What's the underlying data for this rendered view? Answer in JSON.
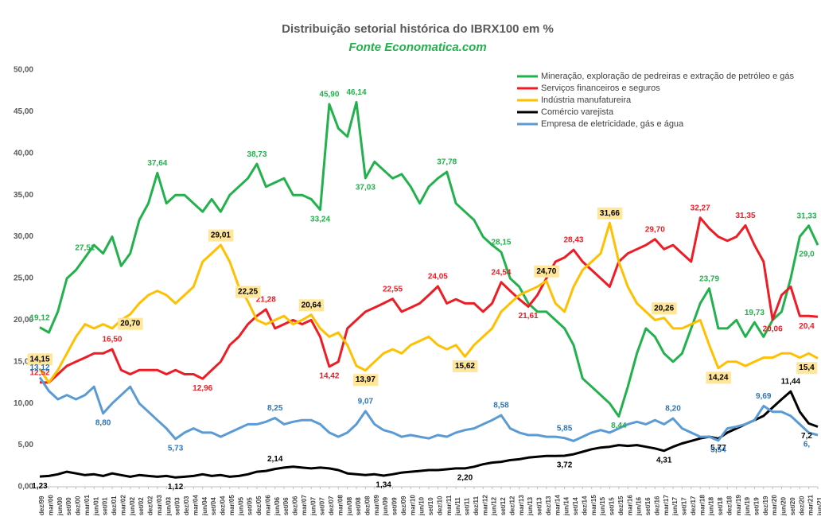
{
  "chart_data": {
    "type": "line",
    "title": "Distribuição setorial histórica do IBRX100 em %",
    "subtitle": "Fonte Economatica.com",
    "categories": [
      "dez/99",
      "mar/00",
      "jun/00",
      "set/00",
      "dez/00",
      "mar/01",
      "jun/01",
      "set/01",
      "dez/01",
      "mar/02",
      "jun/02",
      "set/02",
      "dez/02",
      "mar/03",
      "jun/03",
      "set/03",
      "dez/03",
      "mar/04",
      "jun/04",
      "set/04",
      "dez/04",
      "mar/05",
      "jun/05",
      "set/05",
      "dez/05",
      "mar/06",
      "jun/06",
      "set/06",
      "dez/06",
      "mar/07",
      "jun/07",
      "set/07",
      "dez/07",
      "mar/08",
      "jun/08",
      "set/08",
      "dez/08",
      "mar/09",
      "jun/09",
      "set/09",
      "dez/09",
      "mar/10",
      "jun/10",
      "set/10",
      "dez/10",
      "mar/11",
      "jun/11",
      "set/11",
      "dez/11",
      "mar/12",
      "jun/12",
      "set/12",
      "dez/12",
      "mar/13",
      "jun/13",
      "set/13",
      "dez/13",
      "mar/14",
      "jun/14",
      "set/14",
      "dez/14",
      "mar/15",
      "jun/15",
      "set/15",
      "dez/15",
      "mar/16",
      "jun/16",
      "set/16",
      "dez/16",
      "mar/17",
      "jun/17",
      "set/17",
      "dez/17",
      "mar/18",
      "jun/18",
      "set/18",
      "dez/18",
      "mar/19",
      "jun/19",
      "set/19",
      "dez/19",
      "mar/20",
      "jun/20",
      "set/20",
      "dez/20",
      "mar/21",
      "jun/21"
    ],
    "ylim": [
      0,
      50
    ],
    "yticks": [
      {
        "value": 0,
        "label": "0,00"
      },
      {
        "value": 5,
        "label": "5,00"
      },
      {
        "value": 10,
        "label": "10,00"
      },
      {
        "value": 15,
        "label": "15,00"
      },
      {
        "value": 20,
        "label": "20,00"
      },
      {
        "value": 25,
        "label": "25,00"
      },
      {
        "value": 30,
        "label": "30,00"
      },
      {
        "value": 35,
        "label": "35,00"
      },
      {
        "value": 40,
        "label": "40,00"
      },
      {
        "value": 45,
        "label": "45,00"
      },
      {
        "value": 50,
        "label": "50,00"
      }
    ],
    "grid": false,
    "legend": "top-right",
    "series": [
      {
        "name": "Mineração, exploração de pedreiras e extração de petróleo e gás",
        "color": "#22b14c",
        "label_color": "#22b14c",
        "values": [
          19.12,
          18.5,
          21,
          25,
          26,
          27.51,
          29,
          28,
          30,
          26.5,
          28,
          32,
          34,
          37.64,
          34,
          35,
          35,
          34,
          33,
          34.5,
          33,
          35,
          36,
          37,
          38.73,
          36,
          36.5,
          37,
          35,
          35,
          34.5,
          33.24,
          45.9,
          43,
          42,
          46.14,
          37.03,
          39,
          38,
          37,
          37.5,
          36,
          34,
          36,
          37,
          37.78,
          34,
          33,
          32,
          30,
          29,
          28.15,
          25,
          24,
          22,
          21,
          21,
          20,
          19,
          17,
          13,
          12,
          11,
          10,
          8.44,
          12,
          16,
          19,
          18,
          16,
          15,
          16,
          19,
          22,
          23.79,
          19,
          19,
          20,
          18,
          19.73,
          18,
          20,
          21,
          25,
          30,
          31.33,
          29.0
        ],
        "value_labels": [
          "19,12",
          null,
          null,
          null,
          null,
          "27,51",
          null,
          null,
          null,
          null,
          null,
          null,
          null,
          "37,64",
          null,
          null,
          null,
          null,
          null,
          null,
          null,
          null,
          null,
          null,
          "38,73",
          null,
          null,
          null,
          null,
          null,
          null,
          "33,24",
          "45,90",
          null,
          null,
          "46,14",
          "37,03",
          null,
          null,
          null,
          null,
          null,
          null,
          null,
          null,
          "37,78",
          null,
          null,
          null,
          null,
          null,
          "28,15",
          null,
          null,
          null,
          null,
          null,
          null,
          null,
          null,
          null,
          null,
          null,
          null,
          "8,44",
          null,
          null,
          null,
          null,
          null,
          null,
          null,
          null,
          null,
          "23,79",
          null,
          null,
          null,
          null,
          "19,73",
          null,
          null,
          null,
          null,
          null,
          "31,33",
          "29,0"
        ]
      },
      {
        "name": "Serviços financeiros e seguros",
        "color": "#ee1c25",
        "label_color": "#ee1c25",
        "values": [
          12.52,
          12.5,
          13.5,
          14.5,
          15,
          15.5,
          16,
          16,
          16.5,
          14,
          13.5,
          14,
          14,
          14,
          13.5,
          14,
          13.5,
          13.5,
          12.96,
          14,
          15,
          17,
          18,
          19.5,
          20.5,
          21.28,
          19,
          19.5,
          20,
          19.5,
          20,
          18,
          14.42,
          15,
          19,
          20,
          21,
          21.5,
          22,
          22.55,
          21,
          21.5,
          22,
          23,
          24.05,
          22,
          22.5,
          22,
          22,
          21,
          22,
          24.54,
          23.5,
          22.5,
          21.61,
          23,
          25,
          27,
          27.5,
          28.43,
          27,
          26,
          25,
          24,
          27,
          28,
          28.5,
          29,
          29.7,
          28.5,
          29,
          28,
          27,
          32.27,
          31,
          30,
          29.5,
          30,
          31.35,
          29,
          27,
          20.06,
          23,
          24,
          20.5,
          20.5,
          20.4
        ],
        "value_labels": [
          "12,52",
          null,
          null,
          null,
          null,
          null,
          null,
          null,
          "16,50",
          null,
          null,
          null,
          null,
          null,
          null,
          null,
          null,
          null,
          "12,96",
          null,
          null,
          null,
          null,
          null,
          null,
          "21,28",
          null,
          null,
          null,
          null,
          null,
          null,
          "14,42",
          null,
          null,
          null,
          null,
          null,
          null,
          "22,55",
          null,
          null,
          null,
          null,
          "24,05",
          null,
          null,
          null,
          null,
          null,
          null,
          "24,54",
          null,
          null,
          "21,61",
          null,
          null,
          null,
          null,
          "28,43",
          null,
          null,
          null,
          null,
          null,
          null,
          null,
          null,
          "29,70",
          null,
          null,
          null,
          null,
          "32,27",
          null,
          null,
          null,
          null,
          "31,35",
          null,
          null,
          "20,06",
          null,
          null,
          null,
          null,
          "20,4"
        ]
      },
      {
        "name": "Indústria manufatureira",
        "color": "#ffc000",
        "label_color": "#000000",
        "label_background": "#ffe699",
        "values": [
          14.15,
          12.5,
          14,
          16,
          18,
          19.5,
          19,
          19.5,
          19,
          20,
          20.7,
          22,
          23,
          23.5,
          23,
          22,
          23,
          24,
          27,
          28,
          29.01,
          27,
          24,
          22.25,
          20,
          19.5,
          20,
          20.5,
          19.5,
          20,
          20.64,
          19,
          18,
          18.5,
          17,
          14.5,
          13.97,
          15,
          16,
          16.5,
          16,
          17,
          17.5,
          18,
          17,
          16.5,
          17,
          15.62,
          17,
          18,
          19,
          21,
          22,
          23,
          23.5,
          24,
          24.7,
          22,
          21,
          24,
          26,
          27,
          28,
          31.66,
          27,
          24,
          22,
          21,
          20,
          20.26,
          19,
          19,
          19.5,
          20,
          17,
          14.24,
          15,
          15,
          14.5,
          15,
          15.5,
          15.5,
          16,
          16,
          15.5,
          16,
          15.4
        ],
        "value_labels": [
          "14,15",
          null,
          null,
          null,
          null,
          null,
          null,
          null,
          null,
          null,
          "20,70",
          null,
          null,
          null,
          null,
          null,
          null,
          null,
          null,
          null,
          "29,01",
          null,
          null,
          "22,25",
          null,
          null,
          null,
          null,
          null,
          null,
          "20,64",
          null,
          null,
          null,
          null,
          null,
          "13,97",
          null,
          null,
          null,
          null,
          null,
          null,
          null,
          null,
          null,
          null,
          "15,62",
          null,
          null,
          null,
          null,
          null,
          null,
          null,
          null,
          "24,70",
          null,
          null,
          null,
          null,
          null,
          null,
          "31,66",
          null,
          null,
          null,
          null,
          null,
          "20,26",
          null,
          null,
          null,
          null,
          null,
          "14,24",
          null,
          null,
          null,
          null,
          null,
          null,
          null,
          null,
          null,
          null,
          "15,4"
        ]
      },
      {
        "name": "Comércio varejista",
        "color": "#000000",
        "label_color": "#000000",
        "values": [
          1.23,
          1.3,
          1.5,
          1.8,
          1.6,
          1.4,
          1.5,
          1.3,
          1.6,
          1.4,
          1.2,
          1.4,
          1.3,
          1.2,
          1.3,
          1.12,
          1.2,
          1.3,
          1.5,
          1.3,
          1.4,
          1.2,
          1.3,
          1.5,
          1.8,
          1.9,
          2.14,
          2.3,
          2.4,
          2.3,
          2.2,
          2.3,
          2.2,
          2.0,
          1.6,
          1.5,
          1.4,
          1.5,
          1.34,
          1.5,
          1.7,
          1.8,
          1.9,
          2.0,
          2.0,
          2.1,
          2.2,
          2.2,
          2.4,
          2.7,
          2.9,
          3.0,
          3.2,
          3.3,
          3.5,
          3.6,
          3.7,
          3.7,
          3.72,
          3.9,
          4.2,
          4.5,
          4.7,
          4.8,
          5.0,
          4.9,
          5.0,
          4.8,
          4.6,
          4.31,
          4.8,
          5.2,
          5.5,
          5.8,
          6.0,
          5.77,
          6.5,
          7.0,
          7.5,
          8.0,
          8.5,
          9.5,
          10.5,
          11.44,
          9.0,
          7.6,
          7.2
        ],
        "value_labels": [
          "1,23",
          null,
          null,
          null,
          null,
          null,
          null,
          null,
          null,
          null,
          null,
          null,
          null,
          null,
          null,
          "1,12",
          null,
          null,
          null,
          null,
          null,
          null,
          null,
          null,
          null,
          null,
          "2,14",
          null,
          null,
          null,
          null,
          null,
          null,
          null,
          null,
          null,
          null,
          null,
          "1,34",
          null,
          null,
          null,
          null,
          null,
          null,
          null,
          null,
          "2,20",
          null,
          null,
          null,
          null,
          null,
          null,
          null,
          null,
          null,
          null,
          "3,72",
          null,
          null,
          null,
          null,
          null,
          null,
          null,
          null,
          null,
          null,
          "4,31",
          null,
          null,
          null,
          null,
          null,
          "5,77",
          null,
          null,
          null,
          null,
          null,
          null,
          null,
          "11,44",
          null,
          null,
          "7,2"
        ]
      },
      {
        "name": "Empresa de eletricidade, gás e água",
        "color": "#5b9bd5",
        "label_color": "#2e75b6",
        "values": [
          13.12,
          11.5,
          10.5,
          11,
          10.5,
          11,
          12,
          8.8,
          10,
          11,
          12,
          10,
          9,
          8,
          7,
          5.73,
          6.5,
          7,
          6.5,
          6.5,
          6,
          6.5,
          7,
          7.5,
          7.5,
          7.8,
          8.25,
          7.5,
          7.8,
          8,
          8,
          7.5,
          6.5,
          6,
          6.5,
          7.5,
          9.07,
          7.5,
          6.8,
          6.5,
          6,
          6.2,
          6,
          5.8,
          6.2,
          6,
          6.5,
          6.8,
          7,
          7.5,
          8,
          8.58,
          7,
          6.5,
          6.2,
          6.2,
          6,
          6,
          5.85,
          5.5,
          6,
          6.5,
          6.8,
          6.5,
          7,
          7.5,
          7.8,
          7.5,
          8,
          7.5,
          8.2,
          7,
          6.5,
          6,
          6,
          5.54,
          7,
          7.2,
          7.5,
          8,
          9.69,
          9,
          9,
          8.5,
          7.5,
          6.5,
          6.2
        ],
        "value_labels": [
          "13,12",
          null,
          null,
          null,
          null,
          null,
          null,
          "8,80",
          null,
          null,
          null,
          null,
          null,
          null,
          null,
          "5,73",
          null,
          null,
          null,
          null,
          null,
          null,
          null,
          null,
          null,
          null,
          "8,25",
          null,
          null,
          null,
          null,
          null,
          null,
          null,
          null,
          null,
          "9,07",
          null,
          null,
          null,
          null,
          null,
          null,
          null,
          null,
          null,
          null,
          null,
          null,
          null,
          null,
          "8,58",
          null,
          null,
          null,
          null,
          null,
          null,
          "5,85",
          null,
          null,
          null,
          null,
          null,
          null,
          null,
          null,
          null,
          null,
          null,
          "8,20",
          null,
          null,
          null,
          null,
          "5,54",
          null,
          null,
          null,
          null,
          "9,69",
          null,
          null,
          null,
          null,
          null,
          "6,"
        ]
      }
    ]
  }
}
